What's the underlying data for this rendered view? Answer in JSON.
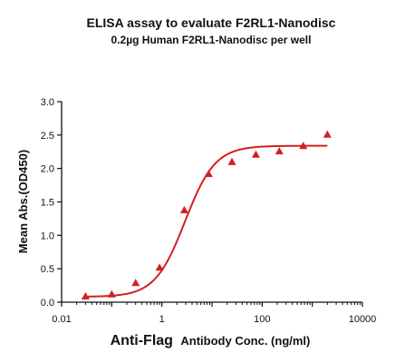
{
  "chart_data": {
    "type": "scatter",
    "title": "ELISA assay to evaluate F2RL1-Nanodisc",
    "subtitle": "0.2µg Human F2RL1-Nanodisc per well",
    "xlabel_bold": "Anti-Flag",
    "xlabel_rest": "Antibody Conc. (ng/ml)",
    "ylabel": "Mean Abs.(OD450)",
    "x_scale": "log",
    "xlim": [
      0.01,
      10000
    ],
    "ylim": [
      0,
      3.0
    ],
    "x_ticks": [
      0.01,
      1,
      100,
      10000
    ],
    "x_tick_labels": [
      "0.01",
      "1",
      "100",
      "10000"
    ],
    "y_ticks": [
      0,
      0.5,
      1.0,
      1.5,
      2.0,
      2.5,
      3.0
    ],
    "y_tick_labels": [
      "0.0",
      "0.5",
      "1.0",
      "1.5",
      "2.0",
      "2.5",
      "3.0"
    ],
    "grid": false,
    "series": [
      {
        "marker": "triangle",
        "color": "#d42020",
        "x": [
          0.03,
          0.1,
          0.3,
          0.9,
          2.8,
          8.6,
          25,
          75,
          220,
          660,
          2000
        ],
        "y": [
          0.09,
          0.12,
          0.29,
          0.52,
          1.38,
          1.92,
          2.1,
          2.21,
          2.26,
          2.34,
          2.51
        ]
      }
    ],
    "fit_curve": {
      "color": "#d42020",
      "bottom": 0.08,
      "top": 2.34,
      "ec50": 2.9,
      "hill": 1.45,
      "x_start": 0.03,
      "x_end": 2000
    }
  }
}
